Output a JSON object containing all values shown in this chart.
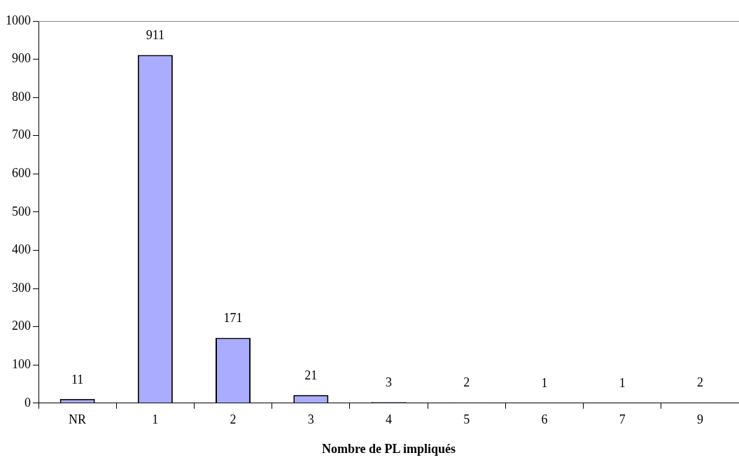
{
  "chart_data": {
    "type": "bar",
    "xlabel": "Nombre de PL impliqués",
    "categories": [
      "NR",
      "1",
      "2",
      "3",
      "4",
      "5",
      "6",
      "7",
      "9"
    ],
    "values": [
      11,
      911,
      171,
      21,
      3,
      2,
      1,
      1,
      2
    ],
    "color": "#a9acff",
    "ylim": [
      0,
      1000
    ],
    "yticks": [
      0,
      100,
      200,
      300,
      400,
      500,
      600,
      700,
      800,
      900,
      1000
    ],
    "data_labels": true,
    "grid": false,
    "legend": false
  }
}
